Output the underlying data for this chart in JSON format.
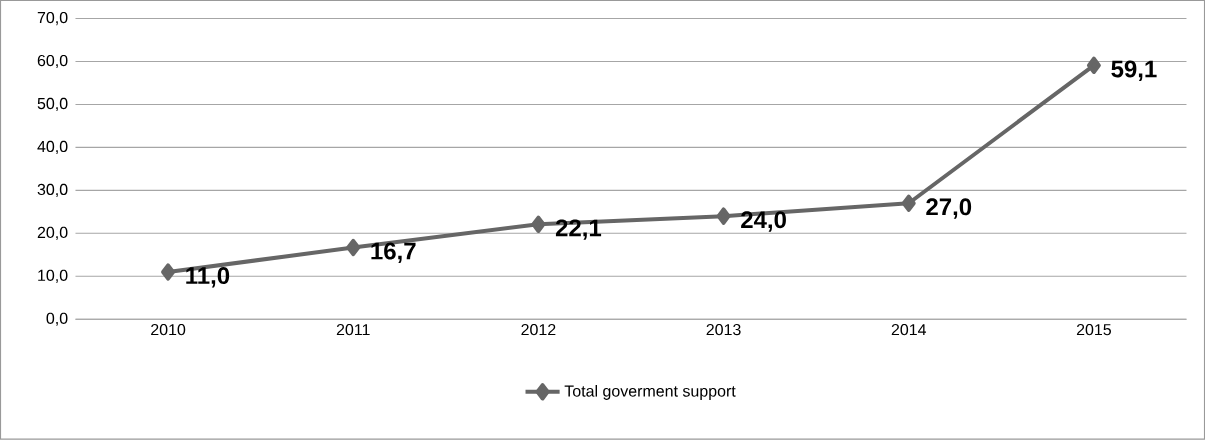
{
  "chart_data": {
    "type": "line",
    "categories": [
      "2010",
      "2011",
      "2012",
      "2013",
      "2014",
      "2015"
    ],
    "series": [
      {
        "name": "Total goverment support",
        "color": "#666666",
        "values": [
          11.0,
          16.7,
          22.1,
          24.0,
          27.0,
          59.1
        ],
        "value_labels": [
          "11,0",
          "16,7",
          "22,1",
          "24,0",
          "27,0",
          "59,1"
        ]
      }
    ],
    "ylim": [
      0,
      70
    ],
    "yticks": [
      {
        "value": 0,
        "label": "0,0"
      },
      {
        "value": 10,
        "label": "10,0"
      },
      {
        "value": 20,
        "label": "20,0"
      },
      {
        "value": 30,
        "label": "30,0"
      },
      {
        "value": 40,
        "label": "40,0"
      },
      {
        "value": 50,
        "label": "50,0"
      },
      {
        "value": 60,
        "label": "60,0"
      },
      {
        "value": 70,
        "label": "70,0"
      }
    ],
    "grid": "y",
    "legend": "bottom",
    "marker": "diamond",
    "line_style": "solid"
  }
}
